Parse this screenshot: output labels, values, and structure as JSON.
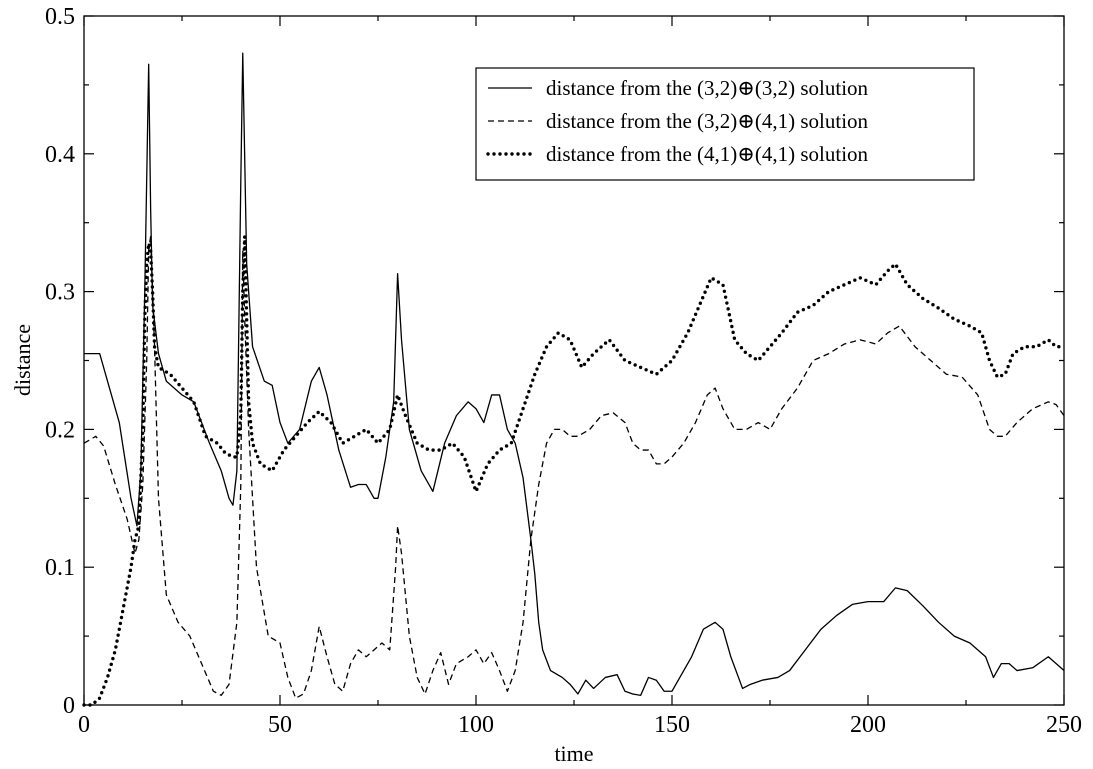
{
  "chart_data": {
    "type": "line",
    "title": "",
    "xlabel": "time",
    "ylabel": "distance",
    "xlim": [
      0,
      250
    ],
    "ylim": [
      0,
      0.5
    ],
    "xticks": [
      0,
      50,
      100,
      150,
      200,
      250
    ],
    "xtick_labels": [
      "0",
      "50",
      "100",
      "150",
      "200",
      "250"
    ],
    "yticks": [
      0,
      0.1,
      0.2,
      0.3,
      0.4,
      0.5
    ],
    "ytick_labels": [
      "0",
      "0.1",
      "0.2",
      "0.3",
      "0.4",
      "0.5"
    ],
    "grid": false,
    "legend_position": "top-right",
    "series": [
      {
        "name": "distance from the (3,2)⊕(3,2) solution",
        "style": "solid",
        "color": "#000000",
        "x": [
          0,
          4,
          6,
          9,
          12,
          13.5,
          14.5,
          15.5,
          16.5,
          17,
          17.5,
          19,
          21,
          25,
          28,
          32,
          35,
          37,
          38,
          39,
          40,
          40.5,
          41.5,
          43,
          46,
          48,
          50,
          52,
          55,
          58,
          60,
          62,
          65,
          68,
          70,
          72,
          74,
          75,
          77,
          79,
          80,
          81,
          83,
          86,
          89,
          92,
          95,
          98,
          100,
          102,
          104,
          106,
          108,
          110,
          112,
          114,
          115,
          116,
          117,
          119,
          122,
          124,
          126,
          128,
          130,
          133,
          136,
          138,
          140,
          142,
          144,
          146,
          148,
          150,
          152,
          155,
          158,
          161,
          163,
          165,
          168,
          170,
          173,
          177,
          180,
          184,
          188,
          192,
          196,
          200,
          204,
          207,
          210,
          214,
          218,
          222,
          226,
          230,
          232,
          234,
          236,
          238,
          242,
          246,
          250
        ],
        "y": [
          0.255,
          0.255,
          0.235,
          0.205,
          0.15,
          0.13,
          0.17,
          0.3,
          0.465,
          0.36,
          0.29,
          0.255,
          0.235,
          0.225,
          0.22,
          0.19,
          0.17,
          0.15,
          0.145,
          0.17,
          0.38,
          0.473,
          0.32,
          0.26,
          0.235,
          0.232,
          0.205,
          0.19,
          0.2,
          0.235,
          0.245,
          0.225,
          0.185,
          0.158,
          0.16,
          0.16,
          0.15,
          0.15,
          0.18,
          0.22,
          0.313,
          0.265,
          0.2,
          0.17,
          0.155,
          0.19,
          0.21,
          0.22,
          0.215,
          0.205,
          0.225,
          0.225,
          0.2,
          0.19,
          0.165,
          0.12,
          0.095,
          0.06,
          0.04,
          0.025,
          0.02,
          0.015,
          0.008,
          0.018,
          0.012,
          0.02,
          0.022,
          0.01,
          0.008,
          0.007,
          0.02,
          0.018,
          0.01,
          0.01,
          0.02,
          0.035,
          0.055,
          0.06,
          0.055,
          0.035,
          0.012,
          0.015,
          0.018,
          0.02,
          0.025,
          0.04,
          0.055,
          0.065,
          0.073,
          0.075,
          0.075,
          0.085,
          0.083,
          0.072,
          0.06,
          0.05,
          0.045,
          0.035,
          0.02,
          0.03,
          0.03,
          0.025,
          0.027,
          0.035,
          0.025
        ]
      },
      {
        "name": "distance from the (3,2)⊕(4,1) solution",
        "style": "dashed",
        "color": "#000000",
        "x": [
          0,
          3,
          5,
          8,
          11,
          13,
          14,
          15,
          16,
          16.5,
          17,
          18,
          19,
          21,
          24,
          27,
          30,
          33,
          35,
          37,
          39,
          40,
          40.5,
          41,
          42,
          44,
          47,
          50,
          52,
          54,
          56,
          58,
          60,
          62,
          64,
          66,
          68,
          70,
          72,
          74,
          76,
          78,
          79.5,
          80,
          81,
          83,
          85,
          87,
          89,
          91,
          93,
          95,
          98,
          100,
          102,
          104,
          106,
          108,
          110,
          112,
          114,
          116,
          118,
          120,
          122,
          124,
          126,
          129,
          132,
          135,
          138,
          140,
          142,
          144,
          146,
          148,
          150,
          153,
          156,
          159,
          161,
          163,
          166,
          169,
          172,
          175,
          178,
          182,
          186,
          190,
          194,
          198,
          202,
          205,
          208,
          212,
          216,
          220,
          224,
          228,
          231,
          233,
          235,
          238,
          242,
          246,
          248,
          250
        ],
        "y": [
          0.19,
          0.195,
          0.188,
          0.16,
          0.135,
          0.11,
          0.12,
          0.16,
          0.25,
          0.33,
          0.34,
          0.26,
          0.15,
          0.08,
          0.06,
          0.05,
          0.03,
          0.01,
          0.007,
          0.015,
          0.06,
          0.16,
          0.33,
          0.28,
          0.2,
          0.1,
          0.05,
          0.045,
          0.02,
          0.005,
          0.008,
          0.025,
          0.057,
          0.035,
          0.015,
          0.01,
          0.03,
          0.04,
          0.035,
          0.04,
          0.045,
          0.04,
          0.1,
          0.13,
          0.11,
          0.05,
          0.02,
          0.008,
          0.025,
          0.038,
          0.015,
          0.03,
          0.035,
          0.04,
          0.03,
          0.038,
          0.025,
          0.01,
          0.025,
          0.06,
          0.12,
          0.16,
          0.19,
          0.2,
          0.2,
          0.195,
          0.195,
          0.2,
          0.21,
          0.212,
          0.205,
          0.19,
          0.185,
          0.185,
          0.175,
          0.175,
          0.18,
          0.19,
          0.205,
          0.225,
          0.23,
          0.215,
          0.2,
          0.2,
          0.205,
          0.2,
          0.215,
          0.23,
          0.25,
          0.255,
          0.262,
          0.265,
          0.262,
          0.27,
          0.275,
          0.26,
          0.25,
          0.24,
          0.238,
          0.225,
          0.2,
          0.195,
          0.195,
          0.205,
          0.215,
          0.22,
          0.218,
          0.21
        ]
      },
      {
        "name": "distance from the (4,1)⊕(4,1) solution",
        "style": "dotted",
        "color": "#000000",
        "x": [
          0,
          2,
          4,
          6,
          8,
          10,
          12,
          13,
          14,
          15,
          15.5,
          16,
          16.5,
          17,
          17.5,
          18,
          19,
          22,
          25,
          28,
          31,
          34,
          36,
          38,
          39,
          40,
          40.5,
          41,
          41.5,
          42,
          43,
          45,
          48,
          51,
          54,
          57,
          60,
          63,
          66,
          69,
          72,
          75,
          78,
          80,
          82,
          85,
          88,
          91,
          94,
          97,
          100,
          103,
          106,
          109,
          112,
          115,
          118,
          121,
          124,
          127,
          130,
          134,
          138,
          142,
          146,
          150,
          154,
          157,
          160,
          163,
          166,
          169,
          172,
          175,
          178,
          182,
          186,
          190,
          194,
          198,
          202,
          205,
          207,
          210,
          214,
          218,
          222,
          226,
          229,
          231,
          233,
          235,
          237,
          240,
          243,
          246,
          248,
          250
        ],
        "y": [
          0.0,
          0.0,
          0.005,
          0.02,
          0.04,
          0.07,
          0.1,
          0.12,
          0.13,
          0.2,
          0.28,
          0.32,
          0.335,
          0.33,
          0.3,
          0.26,
          0.245,
          0.24,
          0.23,
          0.22,
          0.195,
          0.19,
          0.183,
          0.18,
          0.18,
          0.21,
          0.3,
          0.34,
          0.28,
          0.22,
          0.19,
          0.175,
          0.17,
          0.185,
          0.195,
          0.205,
          0.213,
          0.205,
          0.19,
          0.195,
          0.2,
          0.19,
          0.2,
          0.225,
          0.21,
          0.19,
          0.185,
          0.185,
          0.19,
          0.18,
          0.155,
          0.175,
          0.185,
          0.19,
          0.215,
          0.24,
          0.26,
          0.27,
          0.265,
          0.245,
          0.255,
          0.265,
          0.25,
          0.245,
          0.24,
          0.25,
          0.27,
          0.29,
          0.31,
          0.305,
          0.265,
          0.255,
          0.25,
          0.26,
          0.27,
          0.285,
          0.29,
          0.3,
          0.305,
          0.31,
          0.305,
          0.315,
          0.32,
          0.305,
          0.295,
          0.288,
          0.28,
          0.275,
          0.27,
          0.25,
          0.238,
          0.24,
          0.255,
          0.26,
          0.26,
          0.265,
          0.26,
          0.26
        ]
      }
    ]
  }
}
